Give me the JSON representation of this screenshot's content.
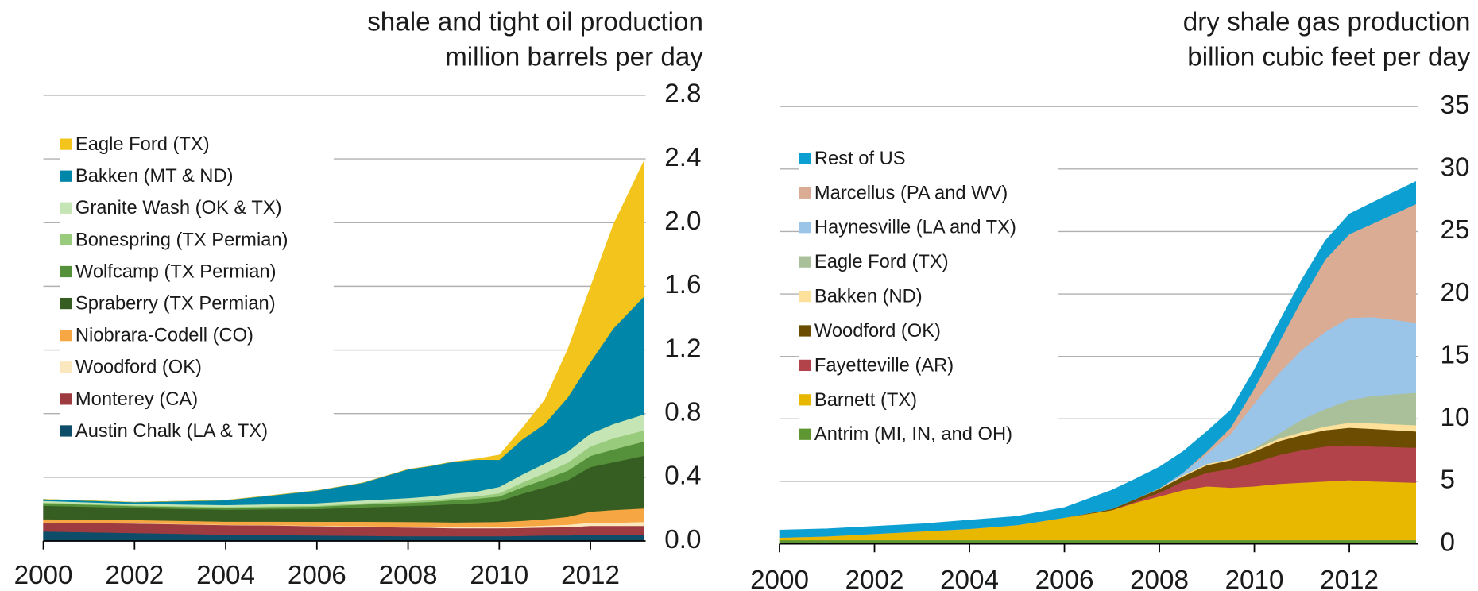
{
  "chart_data": [
    {
      "type": "area",
      "title": "shale and tight oil production",
      "subtitle": "million barrels per day",
      "x": [
        2000,
        2001,
        2002,
        2003,
        2004,
        2005,
        2006,
        2007,
        2008,
        2008.5,
        2009,
        2009.5,
        2010,
        2010.5,
        2011,
        2011.5,
        2012,
        2012.5,
        2013.17
      ],
      "xlim": [
        2000,
        2013.17
      ],
      "xticks": [
        2000,
        2002,
        2004,
        2006,
        2008,
        2010,
        2012
      ],
      "ylim": [
        0,
        2.8
      ],
      "yticks": [
        {
          "value": 0,
          "label": "0.0"
        },
        0.4,
        0.8,
        1.2,
        1.6,
        {
          "value": 2,
          "label": "2.0"
        },
        2.4,
        2.8
      ],
      "grid": true,
      "stacked": true,
      "legend": "upper left",
      "series": [
        {
          "name": "Austin Chalk (LA & TX)",
          "color": "#0d4d6a",
          "values": [
            0.06,
            0.055,
            0.05,
            0.045,
            0.04,
            0.038,
            0.035,
            0.033,
            0.03,
            0.03,
            0.03,
            0.03,
            0.03,
            0.032,
            0.035,
            0.035,
            0.04,
            0.04,
            0.04
          ]
        },
        {
          "name": "Monterey (CA)",
          "color": "#9e3b40",
          "values": [
            0.055,
            0.058,
            0.06,
            0.06,
            0.06,
            0.06,
            0.058,
            0.056,
            0.055,
            0.053,
            0.05,
            0.05,
            0.05,
            0.05,
            0.05,
            0.052,
            0.055,
            0.055,
            0.055
          ]
        },
        {
          "name": "Woodford (OK)",
          "color": "#fbe7bd",
          "values": [
            0.002,
            0.002,
            0.002,
            0.002,
            0.002,
            0.002,
            0.003,
            0.004,
            0.005,
            0.006,
            0.007,
            0.008,
            0.01,
            0.01,
            0.012,
            0.015,
            0.02,
            0.02,
            0.025
          ]
        },
        {
          "name": "Niobrara-Codell (CO)",
          "color": "#f6a744",
          "values": [
            0.02,
            0.02,
            0.02,
            0.02,
            0.02,
            0.022,
            0.025,
            0.028,
            0.03,
            0.03,
            0.03,
            0.03,
            0.03,
            0.035,
            0.04,
            0.05,
            0.07,
            0.08,
            0.085
          ]
        },
        {
          "name": "Spraberry (TX Permian)",
          "color": "#375e22",
          "values": [
            0.085,
            0.08,
            0.075,
            0.075,
            0.075,
            0.078,
            0.08,
            0.09,
            0.1,
            0.105,
            0.115,
            0.12,
            0.13,
            0.17,
            0.2,
            0.23,
            0.28,
            0.3,
            0.33
          ]
        },
        {
          "name": "Wolfcamp (TX Permian)",
          "color": "#55903a",
          "values": [
            0.015,
            0.013,
            0.012,
            0.012,
            0.012,
            0.013,
            0.015,
            0.018,
            0.02,
            0.022,
            0.025,
            0.028,
            0.03,
            0.04,
            0.05,
            0.06,
            0.07,
            0.08,
            0.09
          ]
        },
        {
          "name": "Bonespring (TX Permian)",
          "color": "#98cc7c",
          "values": [
            0.005,
            0.005,
            0.005,
            0.005,
            0.005,
            0.005,
            0.006,
            0.008,
            0.01,
            0.011,
            0.013,
            0.015,
            0.02,
            0.03,
            0.04,
            0.05,
            0.06,
            0.07,
            0.07
          ]
        },
        {
          "name": "Granite Wash (OK & TX)",
          "color": "#c5e5b4",
          "values": [
            0.01,
            0.01,
            0.01,
            0.011,
            0.012,
            0.013,
            0.015,
            0.018,
            0.02,
            0.024,
            0.028,
            0.03,
            0.04,
            0.05,
            0.06,
            0.07,
            0.08,
            0.09,
            0.1
          ]
        },
        {
          "name": "Bakken (MT & ND)",
          "color": "#0086a8",
          "values": [
            0.01,
            0.01,
            0.01,
            0.02,
            0.03,
            0.055,
            0.08,
            0.11,
            0.18,
            0.19,
            0.2,
            0.2,
            0.17,
            0.22,
            0.25,
            0.34,
            0.45,
            0.6,
            0.74
          ]
        },
        {
          "name": "Eagle Ford (TX)",
          "color": "#f2c41c",
          "values": [
            0,
            0,
            0,
            0,
            0,
            0,
            0,
            0,
            0,
            0,
            0,
            0.005,
            0.03,
            0.07,
            0.15,
            0.3,
            0.47,
            0.65,
            0.85
          ]
        }
      ]
    },
    {
      "type": "area",
      "title": "dry shale gas production",
      "subtitle": "billion cubic feet per day",
      "x": [
        2000,
        2001,
        2002,
        2003,
        2004,
        2005,
        2006,
        2007,
        2007.5,
        2008,
        2008.5,
        2009,
        2009.5,
        2010,
        2010.5,
        2011,
        2011.5,
        2012,
        2012.5,
        2013.4
      ],
      "xlim": [
        2000,
        2013.4
      ],
      "xticks": [
        2000,
        2002,
        2004,
        2006,
        2008,
        2010,
        2012
      ],
      "ylim": [
        0,
        35
      ],
      "yticks": [
        0,
        5,
        10,
        15,
        20,
        25,
        30,
        35
      ],
      "grid": true,
      "stacked": true,
      "legend": "upper left",
      "series": [
        {
          "name": "Antrim (MI, IN, and OH)",
          "color": "#5e9732",
          "values": [
            0.3,
            0.3,
            0.3,
            0.3,
            0.3,
            0.3,
            0.3,
            0.3,
            0.3,
            0.3,
            0.3,
            0.3,
            0.3,
            0.3,
            0.3,
            0.3,
            0.3,
            0.3,
            0.3,
            0.3
          ]
        },
        {
          "name": "Barnett (TX)",
          "color": "#e8b800",
          "values": [
            0.2,
            0.3,
            0.5,
            0.7,
            0.9,
            1.2,
            1.8,
            2.4,
            3.0,
            3.5,
            4.0,
            4.3,
            4.2,
            4.3,
            4.5,
            4.6,
            4.7,
            4.8,
            4.7,
            4.6
          ]
        },
        {
          "name": "Fayetteville (AR)",
          "color": "#b2434b",
          "values": [
            0,
            0,
            0,
            0,
            0,
            0,
            0,
            0,
            0.1,
            0.3,
            0.7,
            1.1,
            1.5,
            1.9,
            2.3,
            2.6,
            2.8,
            2.8,
            2.8,
            2.8
          ]
        },
        {
          "name": "Woodford (OK)",
          "color": "#6b4c00",
          "values": [
            0,
            0,
            0,
            0,
            0,
            0,
            0,
            0.1,
            0.2,
            0.3,
            0.4,
            0.6,
            0.7,
            0.9,
            1.1,
            1.2,
            1.3,
            1.4,
            1.4,
            1.3
          ]
        },
        {
          "name": "Bakken (ND)",
          "color": "#fde09a",
          "values": [
            0,
            0,
            0,
            0,
            0,
            0,
            0,
            0,
            0,
            0.05,
            0.1,
            0.1,
            0.1,
            0.15,
            0.2,
            0.25,
            0.3,
            0.4,
            0.45,
            0.5
          ]
        },
        {
          "name": "Eagle Ford (TX)",
          "color": "#a9c09a",
          "values": [
            0,
            0,
            0,
            0,
            0,
            0,
            0,
            0,
            0,
            0,
            0,
            0,
            0,
            0.1,
            0.4,
            1.0,
            1.4,
            1.8,
            2.2,
            2.6
          ]
        },
        {
          "name": "Haynesville (LA and TX)",
          "color": "#9bc5e8",
          "values": [
            0,
            0,
            0,
            0,
            0,
            0,
            0,
            0,
            0,
            0,
            0.2,
            0.8,
            2.0,
            3.6,
            4.8,
            5.6,
            6.2,
            6.6,
            6.3,
            5.6
          ]
        },
        {
          "name": "Marcellus (PA and WV)",
          "color": "#d9ac93",
          "values": [
            0,
            0,
            0,
            0,
            0,
            0,
            0,
            0,
            0,
            0,
            0,
            0.2,
            0.5,
            1.2,
            2.4,
            4.0,
            5.8,
            6.7,
            7.5,
            9.5
          ]
        },
        {
          "name": "Rest of US",
          "color": "#0c9fd1",
          "values": [
            0.6,
            0.6,
            0.6,
            0.6,
            0.7,
            0.7,
            0.8,
            1.5,
            1.6,
            1.7,
            1.7,
            1.6,
            1.4,
            1.5,
            1.6,
            1.6,
            1.5,
            1.6,
            1.7,
            1.8
          ]
        }
      ]
    }
  ]
}
